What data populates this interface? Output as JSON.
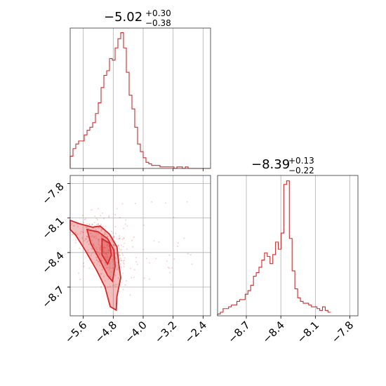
{
  "chart_data": [
    {
      "type": "histogram",
      "panel": "marginal-param-1",
      "title": {
        "median": "−5.02",
        "plus": "+0.30",
        "minus": "−0.38"
      },
      "xlim": [
        -5.95,
        -2.2
      ],
      "x_ticks": [
        -5.6,
        -4.8,
        -4.0,
        -3.2,
        -2.4
      ],
      "bin_edges_start": -5.95,
      "bin_width": 0.075,
      "counts": [
        8,
        13,
        16,
        18,
        18,
        22,
        25,
        27,
        30,
        36,
        43,
        53,
        61,
        64,
        72,
        71,
        79,
        85,
        89,
        79,
        63,
        48,
        39,
        27,
        16,
        11,
        7,
        4,
        3,
        2,
        2,
        2,
        1,
        1,
        1,
        1,
        1,
        0,
        1,
        1,
        0,
        1,
        0,
        0,
        0,
        0,
        0,
        0,
        0,
        0
      ],
      "ylim": [
        0,
        92
      ],
      "color": "#d62728"
    },
    {
      "type": "histogram",
      "panel": "marginal-param-2",
      "title": {
        "median": "−8.39",
        "plus": "+0.13",
        "minus": "−0.22"
      },
      "xlim": [
        -8.95,
        -7.73
      ],
      "x_ticks": [
        -8.7,
        -8.4,
        -8.1,
        -7.8
      ],
      "bin_edges_start": -8.95,
      "bin_width": 0.024,
      "counts": [
        1,
        2,
        4,
        4,
        5,
        6,
        6,
        8,
        9,
        9,
        12,
        14,
        17,
        22,
        24,
        27,
        31,
        35,
        33,
        29,
        34,
        41,
        37,
        46,
        73,
        75,
        43,
        25,
        15,
        10,
        8,
        7,
        7,
        6,
        5,
        5,
        4,
        3,
        5,
        3,
        2
      ],
      "ylim": [
        0,
        78
      ],
      "color": "#d62728"
    },
    {
      "type": "scatter",
      "panel": "joint-2d",
      "xlim": [
        -5.95,
        -2.2
      ],
      "ylim": [
        -8.95,
        -7.73
      ],
      "x_ticks": [
        -5.6,
        -4.8,
        -4.0,
        -3.2,
        -2.4
      ],
      "y_ticks": [
        -7.8,
        -8.1,
        -8.4,
        -8.7
      ],
      "color": "#d62728",
      "contour_levels": 3
    }
  ]
}
